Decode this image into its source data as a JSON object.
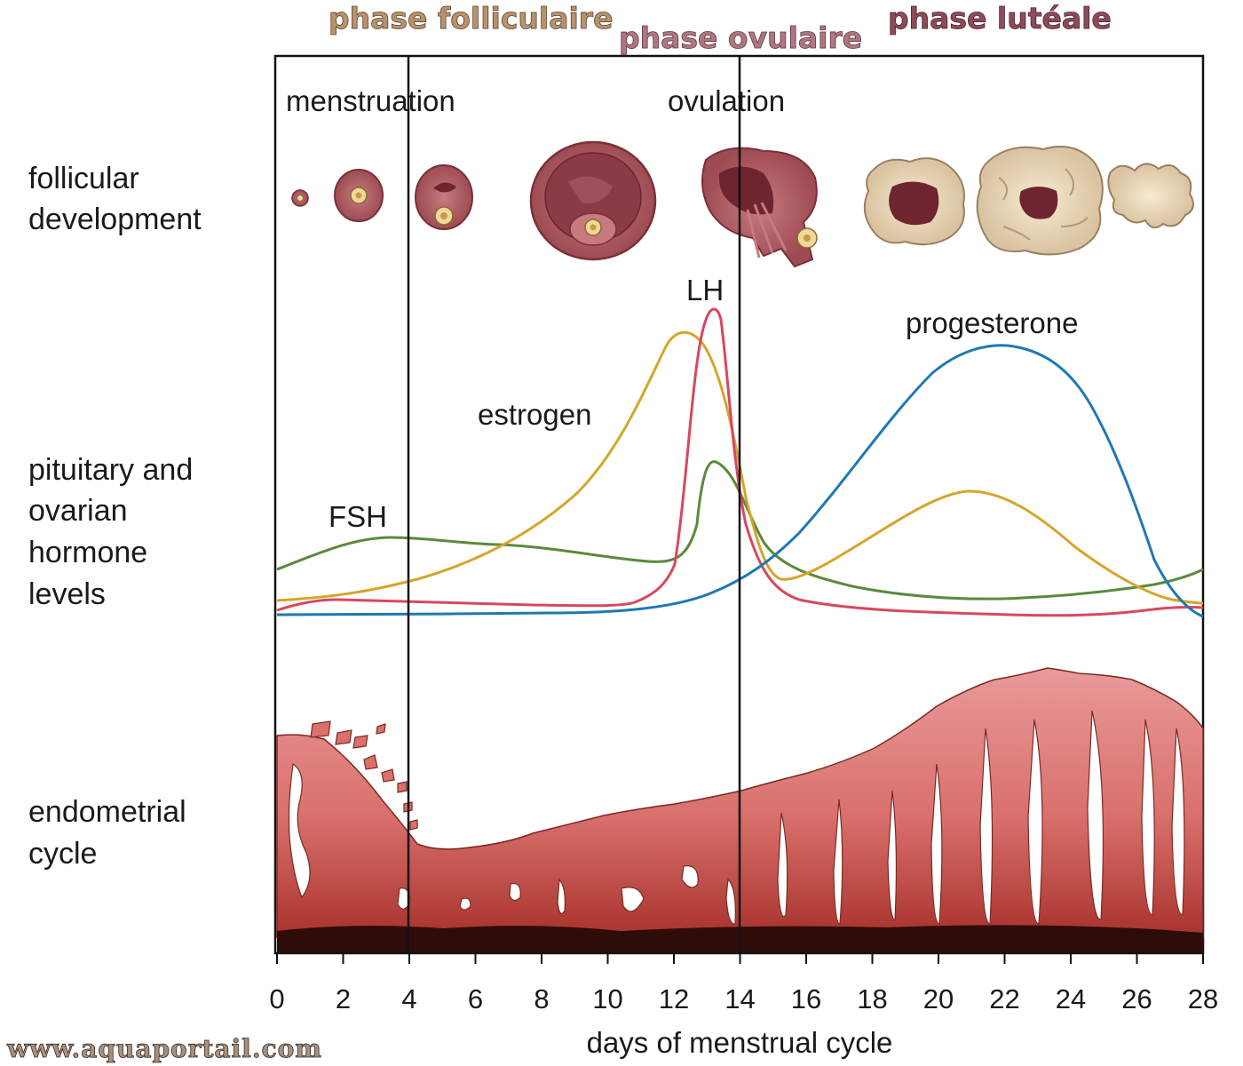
{
  "phases": {
    "follicular": "phase folliculaire",
    "ovular": "phase ovulaire",
    "luteal": "phase lutéale"
  },
  "phase_colors": {
    "follicular": "#b8926a",
    "ovular": "#b07680",
    "luteal": "#8f4a58"
  },
  "events": {
    "menstruation": "menstruation",
    "ovulation": "ovulation"
  },
  "rows": {
    "follicular_line1": "follicular",
    "follicular_line2": "development",
    "hormone_line1": "pituitary and",
    "hormone_line2": "ovarian",
    "hormone_line3": "hormone",
    "hormone_line4": "levels",
    "endometrial_line1": "endometrial",
    "endometrial_line2": "cycle"
  },
  "axis": {
    "xlabel": "days of menstrual cycle",
    "ticks": [
      "0",
      "2",
      "4",
      "6",
      "8",
      "10",
      "12",
      "14",
      "16",
      "18",
      "20",
      "22",
      "24",
      "26",
      "28"
    ]
  },
  "hormones": {
    "fsh": "FSH",
    "estrogen": "estrogen",
    "lh": "LH",
    "progesterone": "progesterone"
  },
  "hormone_colors": {
    "fsh": "#5a8a3c",
    "estrogen": "#d4a62a",
    "lh": "#d9475e",
    "progesterone": "#1f78b4"
  },
  "watermark": "www.aquaportail.com"
}
